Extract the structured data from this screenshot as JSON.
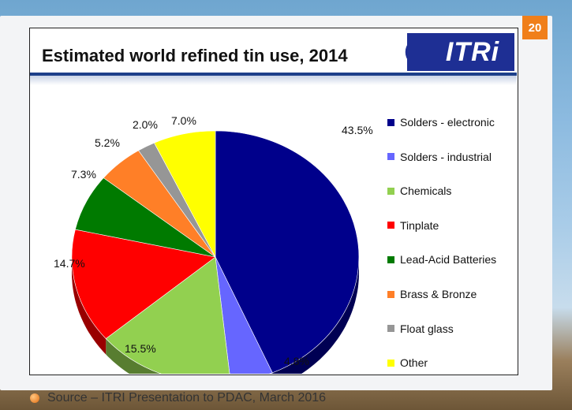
{
  "slide": {
    "page_number": "20",
    "source_text": "Source – ITRI Presentation to PDAC, March 2016"
  },
  "logo": {
    "text": "ITRi",
    "icon": "globe-icon",
    "color": "#1e2f94"
  },
  "chart_data": {
    "type": "pie",
    "title": "Estimated world refined tin use, 2014",
    "legend_position": "right",
    "labels": [
      "Solders - electronic",
      "Solders - industrial",
      "Chemicals",
      "Tinplate",
      "Lead-Acid Batteries",
      "Brass & Bronze",
      "Float glass",
      "Other"
    ],
    "values": [
      43.5,
      4.8,
      15.5,
      14.7,
      7.3,
      5.2,
      2.0,
      7.0
    ],
    "value_labels": [
      "43.5%",
      "4.8%",
      "15.5%",
      "14.7%",
      "7.3%",
      "5.2%",
      "2.0%",
      "7.0%"
    ],
    "colors": [
      "#00008b",
      "#6666ff",
      "#92d050",
      "#ff0000",
      "#007a00",
      "#ff7f27",
      "#969696",
      "#ffff00"
    ]
  }
}
